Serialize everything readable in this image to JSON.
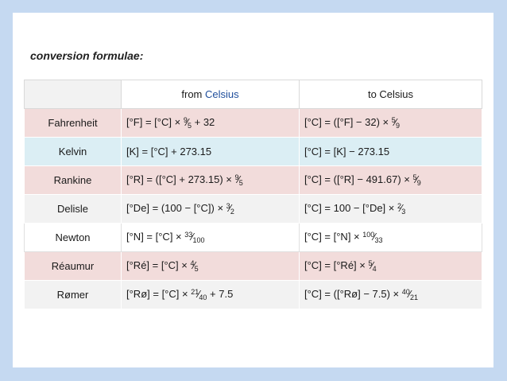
{
  "caption": "conversion formulae:",
  "header": {
    "col1_prefix": "from ",
    "col1_unit": "Celsius",
    "col2": "to Celsius"
  },
  "rows": [
    {
      "name": "Fahrenheit",
      "from": [
        {
          "t": "[°F] = [°C] × "
        },
        {
          "n": "9",
          "d": "5"
        },
        {
          "t": " + 32"
        }
      ],
      "to": [
        {
          "t": "[°C] = ([°F] − 32) × "
        },
        {
          "n": "5",
          "d": "9"
        }
      ]
    },
    {
      "name": "Kelvin",
      "from": [
        {
          "t": "[K] = [°C] + 273.15"
        }
      ],
      "to": [
        {
          "t": "[°C] = [K] − 273.15"
        }
      ]
    },
    {
      "name": "Rankine",
      "from": [
        {
          "t": "[°R] = ([°C] + 273.15) × "
        },
        {
          "n": "9",
          "d": "5"
        }
      ],
      "to": [
        {
          "t": "[°C] = ([°R] − 491.67) × "
        },
        {
          "n": "5",
          "d": "9"
        }
      ]
    },
    {
      "name": "Delisle",
      "from": [
        {
          "t": "[°De] = (100 − [°C]) × "
        },
        {
          "n": "3",
          "d": "2"
        }
      ],
      "to": [
        {
          "t": "[°C] = 100 − [°De] × "
        },
        {
          "n": "2",
          "d": "3"
        }
      ]
    },
    {
      "name": "Newton",
      "from": [
        {
          "t": "[°N] = [°C] × "
        },
        {
          "n": "33",
          "d": "100"
        }
      ],
      "to": [
        {
          "t": "[°C] = [°N] × "
        },
        {
          "n": "100",
          "d": "33"
        }
      ]
    },
    {
      "name": "Réaumur",
      "from": [
        {
          "t": "[°Ré] = [°C] × "
        },
        {
          "n": "4",
          "d": "5"
        }
      ],
      "to": [
        {
          "t": "[°C] = [°Ré] × "
        },
        {
          "n": "5",
          "d": "4"
        }
      ]
    },
    {
      "name": "Rømer",
      "from": [
        {
          "t": "[°Rø] = [°C] × "
        },
        {
          "n": "21",
          "d": "40"
        },
        {
          "t": " + 7.5"
        }
      ],
      "to": [
        {
          "t": "[°C] = ([°Rø] − 7.5) × "
        },
        {
          "n": "40",
          "d": "21"
        }
      ]
    }
  ]
}
